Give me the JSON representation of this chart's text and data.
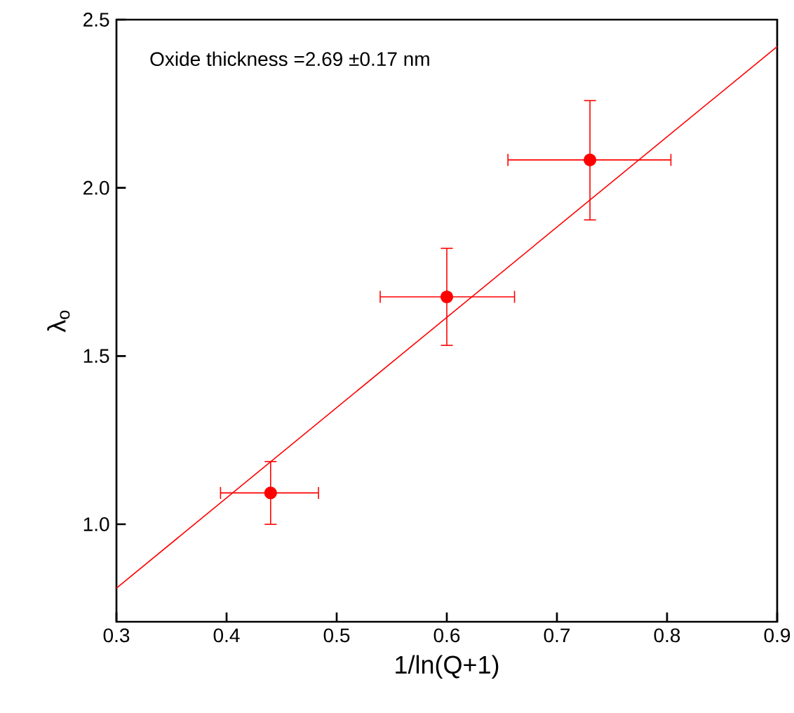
{
  "chart_data": {
    "type": "scatter",
    "xlabel": "1/ln(Q+1)",
    "ylabel": "λ$_{o}$",
    "annotations": [
      "Oxide thickness =2.69 ±0.17 nm"
    ],
    "xlim": [
      0.3,
      0.9
    ],
    "ylim": [
      0.71,
      2.5
    ],
    "xticks": [
      0.3,
      0.4,
      0.5,
      0.6,
      0.7,
      0.8,
      0.9
    ],
    "yticks": [
      {
        "value": 1,
        "label": "1.0"
      },
      1.5,
      {
        "value": 2,
        "label": "2.0"
      },
      2.5
    ],
    "series": [
      {
        "color": "#ff0000",
        "marker": "circle",
        "x": [
          0.44,
          0.6,
          0.73
        ],
        "values": [
          1.093,
          1.676,
          2.083
        ],
        "errors": [
          [
            0.998,
            1.188
          ],
          [
            1.53,
            1.822
          ],
          [
            1.903,
            2.261
          ]
        ],
        "xerrors": [
          [
            0.394,
            0.484
          ],
          [
            0.539,
            0.662
          ],
          [
            0.655,
            0.804
          ]
        ]
      },
      {
        "type": "line",
        "color": "#ff0000",
        "marker": "none",
        "line_style": "solid",
        "x": [
          0.3,
          0.9
        ],
        "values": [
          0.81,
          2.42
        ]
      }
    ]
  }
}
